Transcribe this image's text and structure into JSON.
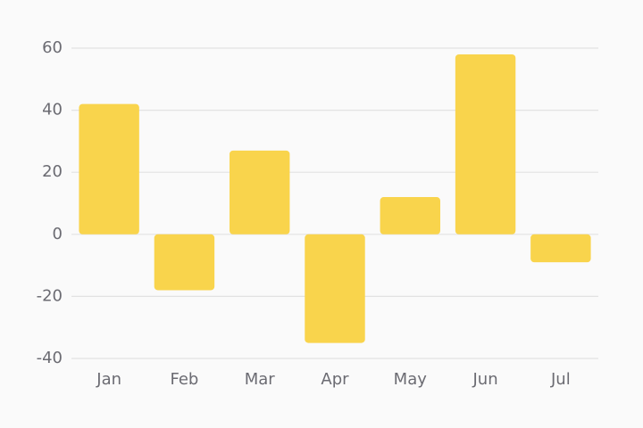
{
  "chart_data": {
    "type": "bar",
    "categories": [
      "Jan",
      "Feb",
      "Mar",
      "Apr",
      "May",
      "Jun",
      "Jul"
    ],
    "values": [
      42,
      -18,
      27,
      -35,
      12,
      58,
      -9
    ],
    "color": "#f9d44c",
    "ylim": [
      -40,
      60
    ],
    "yticks": [
      -40,
      -20,
      0,
      20,
      40,
      60
    ],
    "grid": true
  }
}
